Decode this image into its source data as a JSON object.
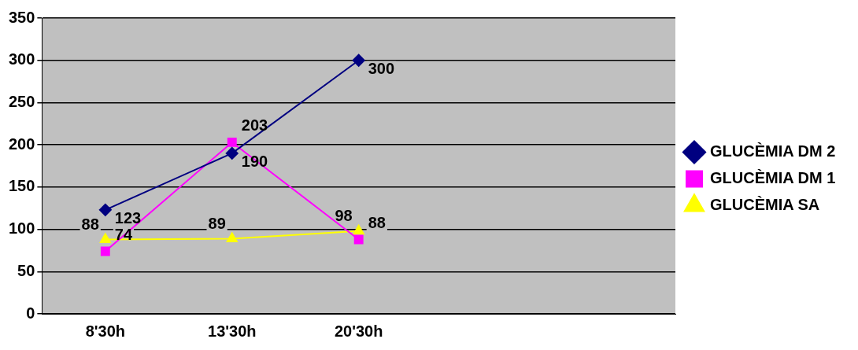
{
  "chart_data": {
    "type": "line",
    "categories": [
      "8'30h",
      "13'30h",
      "20'30h",
      null,
      null
    ],
    "series": [
      {
        "name": "GLUCÈMIA DM 2",
        "color": "#000080",
        "marker": "diamond",
        "values": [
          123,
          190,
          300,
          null,
          null
        ]
      },
      {
        "name": "GLUCÈMIA DM 1",
        "color": "#ff00ff",
        "marker": "square",
        "values": [
          74,
          203,
          88,
          null,
          null
        ]
      },
      {
        "name": "GLUCÈMIA SA",
        "color": "#ffff00",
        "marker": "triangle",
        "values": [
          88,
          89,
          98,
          null,
          null
        ]
      }
    ],
    "ylim": [
      0,
      350
    ],
    "yticks": [
      0,
      50,
      100,
      150,
      200,
      250,
      300,
      350
    ],
    "grid": "y",
    "legend": "right",
    "data_labels": true
  }
}
